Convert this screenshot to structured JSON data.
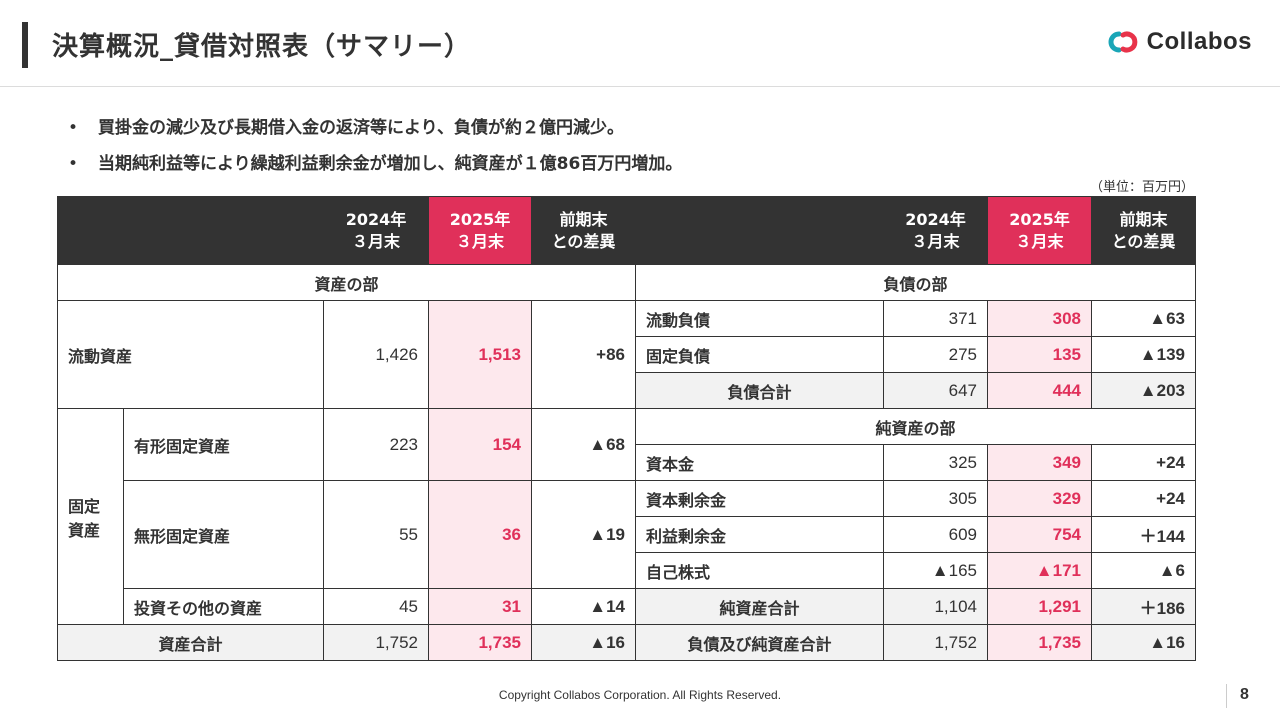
{
  "header": {
    "title": "決算概況_貸借対照表（サマリー）",
    "logo_text": "Collabos",
    "logo_icon": "collabos-logo-icon"
  },
  "bullets": [
    "買掛金の減少及び長期借入金の返済等により、負債が約２億円減少。",
    "当期純利益等により繰越利益剰余金が増加し、純資産が１億86百万円増加。"
  ],
  "unit_note": "（単位：百万円）",
  "table": {
    "col_headers": {
      "y2024": "2024年\n３月末",
      "y2025": "2025年\n３月末",
      "diff": "前期末\nとの差異"
    },
    "assets": {
      "section": "資産の部",
      "current": {
        "label": "流動資産",
        "v2024": "1,426",
        "v2025": "1,513",
        "diff": "+86"
      },
      "fixed_label": "固定\n資産",
      "tangible": {
        "label": "有形固定資産",
        "v2024": "223",
        "v2025": "154",
        "diff": "▲68"
      },
      "intangible": {
        "label": "無形固定資産",
        "v2024": "55",
        "v2025": "36",
        "diff": "▲19"
      },
      "investments": {
        "label": "投資その他の資産",
        "v2024": "45",
        "v2025": "31",
        "diff": "▲14"
      },
      "total": {
        "label": "資産合計",
        "v2024": "1,752",
        "v2025": "1,735",
        "diff": "▲16"
      }
    },
    "liabilities": {
      "section": "負債の部",
      "current": {
        "label": "流動負債",
        "v2024": "371",
        "v2025": "308",
        "diff": "▲63"
      },
      "fixed": {
        "label": "固定負債",
        "v2024": "275",
        "v2025": "135",
        "diff": "▲139"
      },
      "total": {
        "label": "負債合計",
        "v2024": "647",
        "v2025": "444",
        "diff": "▲203"
      }
    },
    "net_assets": {
      "section": "純資産の部",
      "capital": {
        "label": "資本金",
        "v2024": "325",
        "v2025": "349",
        "diff": "+24"
      },
      "capital_surplus": {
        "label": "資本剰余金",
        "v2024": "305",
        "v2025": "329",
        "diff": "+24"
      },
      "retained": {
        "label": "利益剰余金",
        "v2024": "609",
        "v2025": "754",
        "diff": "＋144"
      },
      "treasury": {
        "label": "自己株式",
        "v2024": "▲165",
        "v2025": "▲171",
        "diff": "▲6"
      },
      "total": {
        "label": "純資産合計",
        "v2024": "1,104",
        "v2025": "1,291",
        "diff": "＋186"
      }
    },
    "grand_total": {
      "label": "負債及び純資産合計",
      "v2024": "1,752",
      "v2025": "1,735",
      "diff": "▲16"
    }
  },
  "footer": {
    "copyright": "Copyright Collabos Corporation. All Rights Reserved.",
    "page": "8"
  },
  "colors": {
    "accent": "#e0305a",
    "accent_light": "#fde8ed",
    "header_dark": "#333333",
    "logo_red": "#e8334a",
    "logo_teal": "#1aa6b7"
  }
}
